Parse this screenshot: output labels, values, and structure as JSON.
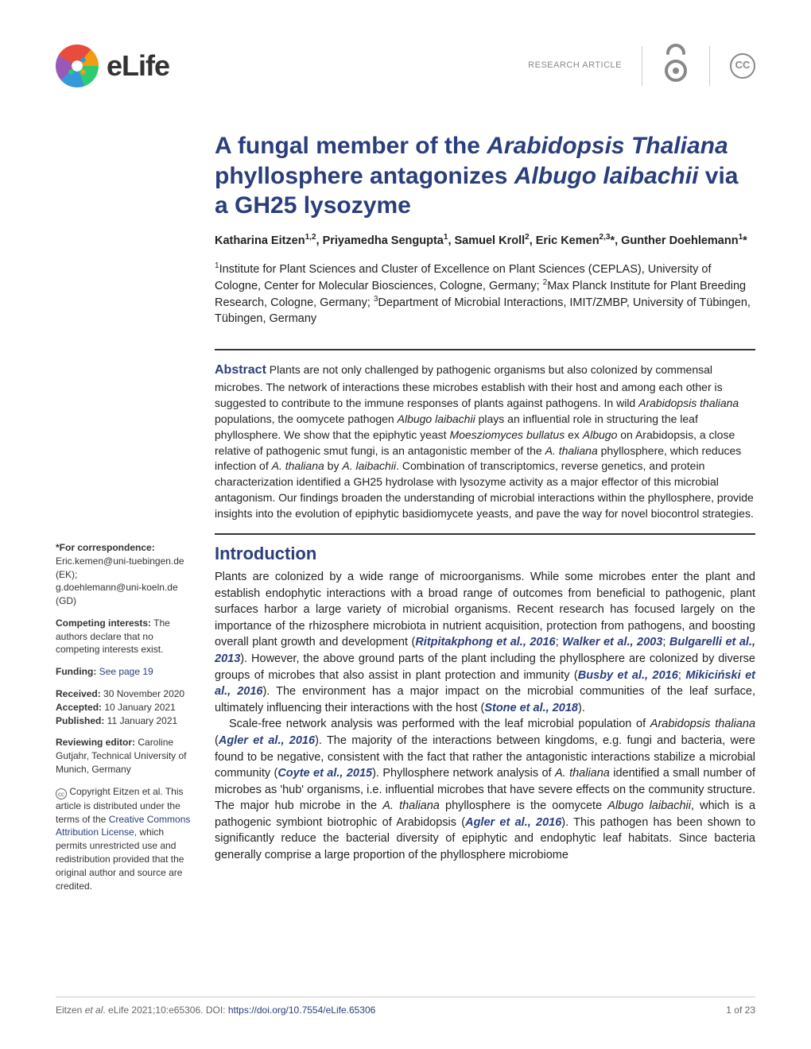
{
  "header": {
    "logo_text": "eLife",
    "article_type": "RESEARCH ARTICLE",
    "oa_color": "#888888",
    "cc_text": "CC"
  },
  "title": {
    "parts": [
      {
        "t": "A fungal member of the ",
        "i": false
      },
      {
        "t": "Arabidopsis Thaliana",
        "i": true
      },
      {
        "t": " phyllosphere antagonizes ",
        "i": false
      },
      {
        "t": "Albugo laibachii",
        "i": true
      },
      {
        "t": " via a GH25 lysozyme",
        "i": false
      }
    ]
  },
  "authors_html": "Katharina Eitzen<sup>1,2</sup>, Priyamedha Sengupta<sup>1</sup>, Samuel Kroll<sup>2</sup>, Eric Kemen<sup>2,3</sup>*, Gunther Doehlemann<sup>1</sup>*",
  "affiliations_html": "<sup>1</sup>Institute for Plant Sciences and Cluster of Excellence on Plant Sciences (CEPLAS), University of Cologne, Center for Molecular Biosciences, Cologne, Germany; <sup>2</sup>Max Planck Institute for Plant Breeding Research, Cologne, Germany; <sup>3</sup>Department of Microbial Interactions, IMIT/ZMBP, University of Tübingen, Tübingen, Germany",
  "abstract": {
    "label": "Abstract",
    "body_html": "Plants are not only challenged by pathogenic organisms but also colonized by commensal microbes. The network of interactions these microbes establish with their host and among each other is suggested to contribute to the immune responses of plants against pathogens. In wild <span class='ital'>Arabidopsis thaliana</span> populations, the oomycete pathogen <span class='ital'>Albugo laibachii</span> plays an influential role in structuring the leaf phyllosphere. We show that the epiphytic yeast <span class='ital'>Moesziomyces bullatus</span> ex <span class='ital'>Albugo</span> on Arabidopsis, a close relative of pathogenic smut fungi, is an antagonistic member of the <span class='ital'>A. thaliana</span> phyllosphere, which reduces infection of <span class='ital'>A. thaliana</span> by <span class='ital'>A. laibachii</span>. Combination of transcriptomics, reverse genetics, and protein characterization identified a GH25 hydrolase with lysozyme activity as a major effector of this microbial antagonism. Our findings broaden the understanding of microbial interactions within the phyllosphere, provide insights into the evolution of epiphytic basidiomycete yeasts, and pave the way for novel biocontrol strategies."
  },
  "sidebar": {
    "correspondence_label": "*For correspondence:",
    "emails": "Eric.kemen@uni-tuebingen.de (EK);\ng.doehlemann@uni-koeln.de (GD)",
    "competing_label": "Competing interests:",
    "competing_text": " The authors declare that no competing interests exist.",
    "funding_label": "Funding:",
    "funding_link": " See page 19",
    "received_label": "Received:",
    "received_val": " 30 November 2020",
    "accepted_label": "Accepted:",
    "accepted_val": " 10 January 2021",
    "published_label": "Published:",
    "published_val": " 11 January 2021",
    "reviewing_label": "Reviewing editor:",
    "reviewing_val": " Caroline Gutjahr, Technical University of Munich, Germany",
    "copyright_html": "Copyright Eitzen et al. This article is distributed under the terms of the <span class='link'>Creative Commons Attribution License,</span> which permits unrestricted use and redistribution provided that the original author and source are credited."
  },
  "introduction": {
    "heading": "Introduction",
    "p1_html": "Plants are colonized by a wide range of microorganisms. While some microbes enter the plant and establish endophytic interactions with a broad range of outcomes from beneficial to pathogenic, plant surfaces harbor a large variety of microbial organisms. Recent research has focused largely on the importance of the rhizosphere microbiota in nutrient acquisition, protection from pathogens, and boosting overall plant growth and development (<span class='ref'>Ritpitakphong et al., 2016</span>; <span class='ref'>Walker et al., 2003</span>; <span class='ref'>Bulgarelli et al., 2013</span>). However, the above ground parts of the plant including the phyllosphere are colonized by diverse groups of microbes that also assist in plant protection and immunity (<span class='ref'>Busby et al., 2016</span>; <span class='ref'>Mikiciński et al., 2016</span>). The environment has a major impact on the microbial communities of the leaf surface, ultimately influencing their interactions with the host (<span class='ref'>Stone et al., 2018</span>).",
    "p2_html": "Scale-free network analysis was performed with the leaf microbial population of <span class='ital'>Arabidopsis thaliana</span> (<span class='ref'>Agler et al., 2016</span>). The majority of the interactions between kingdoms, e.g. fungi and bacteria, were found to be negative, consistent with the fact that rather the antagonistic interactions stabilize a microbial community (<span class='ref'>Coyte et al., 2015</span>). Phyllosphere network analysis of <span class='ital'>A. thaliana</span> identified a small number of microbes as 'hub' organisms, i.e. influential microbes that have severe effects on the community structure. The major hub microbe in the <span class='ital'>A. thaliana</span> phyllosphere is the oomycete <span class='ital'>Albugo laibachii</span>, which is a pathogenic symbiont biotrophic of Arabidopsis (<span class='ref'>Agler et al., 2016</span>). This pathogen has been shown to significantly reduce the bacterial diversity of epiphytic and endophytic leaf habitats. Since bacteria generally comprise a large proportion of the phyllosphere microbiome"
  },
  "footer": {
    "citation_html": "Eitzen <span class='ital'>et al</span>. eLife 2021;10:e65306. ",
    "doi_label": "DOI: ",
    "doi": "https://doi.org/10.7554/eLife.65306",
    "page": "1 of 23"
  },
  "colors": {
    "brand": "#2a3e7c",
    "text": "#222222",
    "muted": "#888888"
  }
}
